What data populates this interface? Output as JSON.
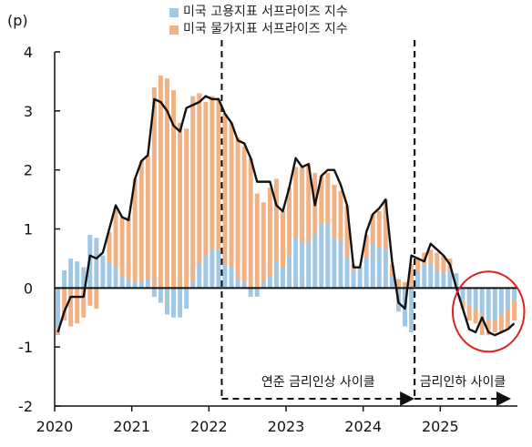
{
  "chart_data": {
    "type": "bar",
    "unit_label": "(p)",
    "ylim": [
      -2,
      4
    ],
    "y_ticks": [
      "4",
      "3",
      "2",
      "1",
      "0",
      "-1",
      "-2"
    ],
    "x_ticks": [
      "2020",
      "2021",
      "2022",
      "2023",
      "2024",
      "2025"
    ],
    "start_month": "2020-01",
    "series": [
      {
        "name": "미국 고용지표 서프라이즈 지수",
        "color": "#9fc7e6",
        "values": [
          -0.7,
          0.3,
          0.5,
          0.45,
          0.35,
          0.9,
          0.85,
          0.55,
          0.45,
          0.35,
          0.2,
          0.15,
          0.1,
          0.1,
          0.15,
          -0.15,
          -0.25,
          -0.45,
          -0.5,
          -0.5,
          -0.35,
          0.1,
          0.4,
          0.55,
          0.65,
          0.65,
          0.4,
          0.35,
          0.15,
          0.1,
          -0.15,
          -0.15,
          0.1,
          0.2,
          0.45,
          0.35,
          0.55,
          0.85,
          0.75,
          0.8,
          0.9,
          1.1,
          1.1,
          0.85,
          0.8,
          0.5,
          0.3,
          0.35,
          0.5,
          0.75,
          0.7,
          0.65,
          0.2,
          -0.4,
          -0.65,
          -0.75,
          0.3,
          0.4,
          0.4,
          0.3,
          0.25,
          0.3,
          0.25,
          -0.2,
          -0.3,
          -0.35,
          -0.45,
          -0.55,
          -0.55,
          -0.45,
          -0.35,
          -0.2
        ]
      },
      {
        "name": "미국 물가지표 서프라이즈 지수",
        "color": "#f2b183",
        "values": [
          -0.1,
          -0.55,
          -0.65,
          -0.6,
          -0.5,
          -0.3,
          -0.35,
          0.0,
          0.5,
          1.0,
          1.0,
          1.05,
          1.75,
          2.05,
          2.1,
          3.4,
          3.6,
          3.55,
          3.35,
          2.8,
          2.7,
          3.15,
          2.9,
          2.6,
          2.6,
          2.55,
          2.55,
          2.45,
          2.4,
          2.3,
          2.2,
          1.6,
          1.35,
          1.5,
          1.4,
          0.95,
          1.15,
          1.2,
          1.3,
          1.3,
          1.05,
          0.8,
          0.85,
          0.9,
          0.85,
          0.9,
          0.1,
          0.0,
          0.4,
          0.5,
          0.6,
          0.85,
          0.2,
          0.15,
          0.1,
          0.4,
          0.2,
          0.2,
          0.25,
          0.3,
          0.3,
          0.2,
          0.0,
          -0.15,
          -0.25,
          -0.25,
          -0.35,
          -0.25,
          -0.2,
          -0.3,
          -0.35,
          -0.35
        ]
      }
    ],
    "total_line": [
      -0.75,
      -0.4,
      -0.15,
      -0.15,
      -0.15,
      0.55,
      0.5,
      0.6,
      1.0,
      1.4,
      1.2,
      1.15,
      1.85,
      2.15,
      2.25,
      3.2,
      3.15,
      3.0,
      2.75,
      2.65,
      3.05,
      3.1,
      3.15,
      3.25,
      3.2,
      3.2,
      2.95,
      2.8,
      2.5,
      2.45,
      2.2,
      1.8,
      1.8,
      1.8,
      1.4,
      1.3,
      1.7,
      2.2,
      2.05,
      2.1,
      1.4,
      1.9,
      2.0,
      2.0,
      1.75,
      1.4,
      0.35,
      0.35,
      0.95,
      1.25,
      1.35,
      1.5,
      0.45,
      -0.25,
      -0.35,
      0.55,
      0.5,
      0.45,
      0.75,
      0.65,
      0.55,
      0.4,
      0.0,
      -0.35,
      -0.7,
      -0.75,
      -0.5,
      -0.75,
      -0.8,
      -0.75,
      -0.7,
      -0.6
    ],
    "annotations": [
      {
        "label": "연준 금리인상 사이클",
        "start_index": 26,
        "end_index": 56
      },
      {
        "label": "금리인하 사이클",
        "start_index": 56,
        "end_index": 71
      }
    ],
    "highlight": {
      "shape": "ellipse",
      "color": "#e02020",
      "start_index": 63,
      "end_index": 71
    },
    "legend_position": "top-center",
    "grid": false
  }
}
